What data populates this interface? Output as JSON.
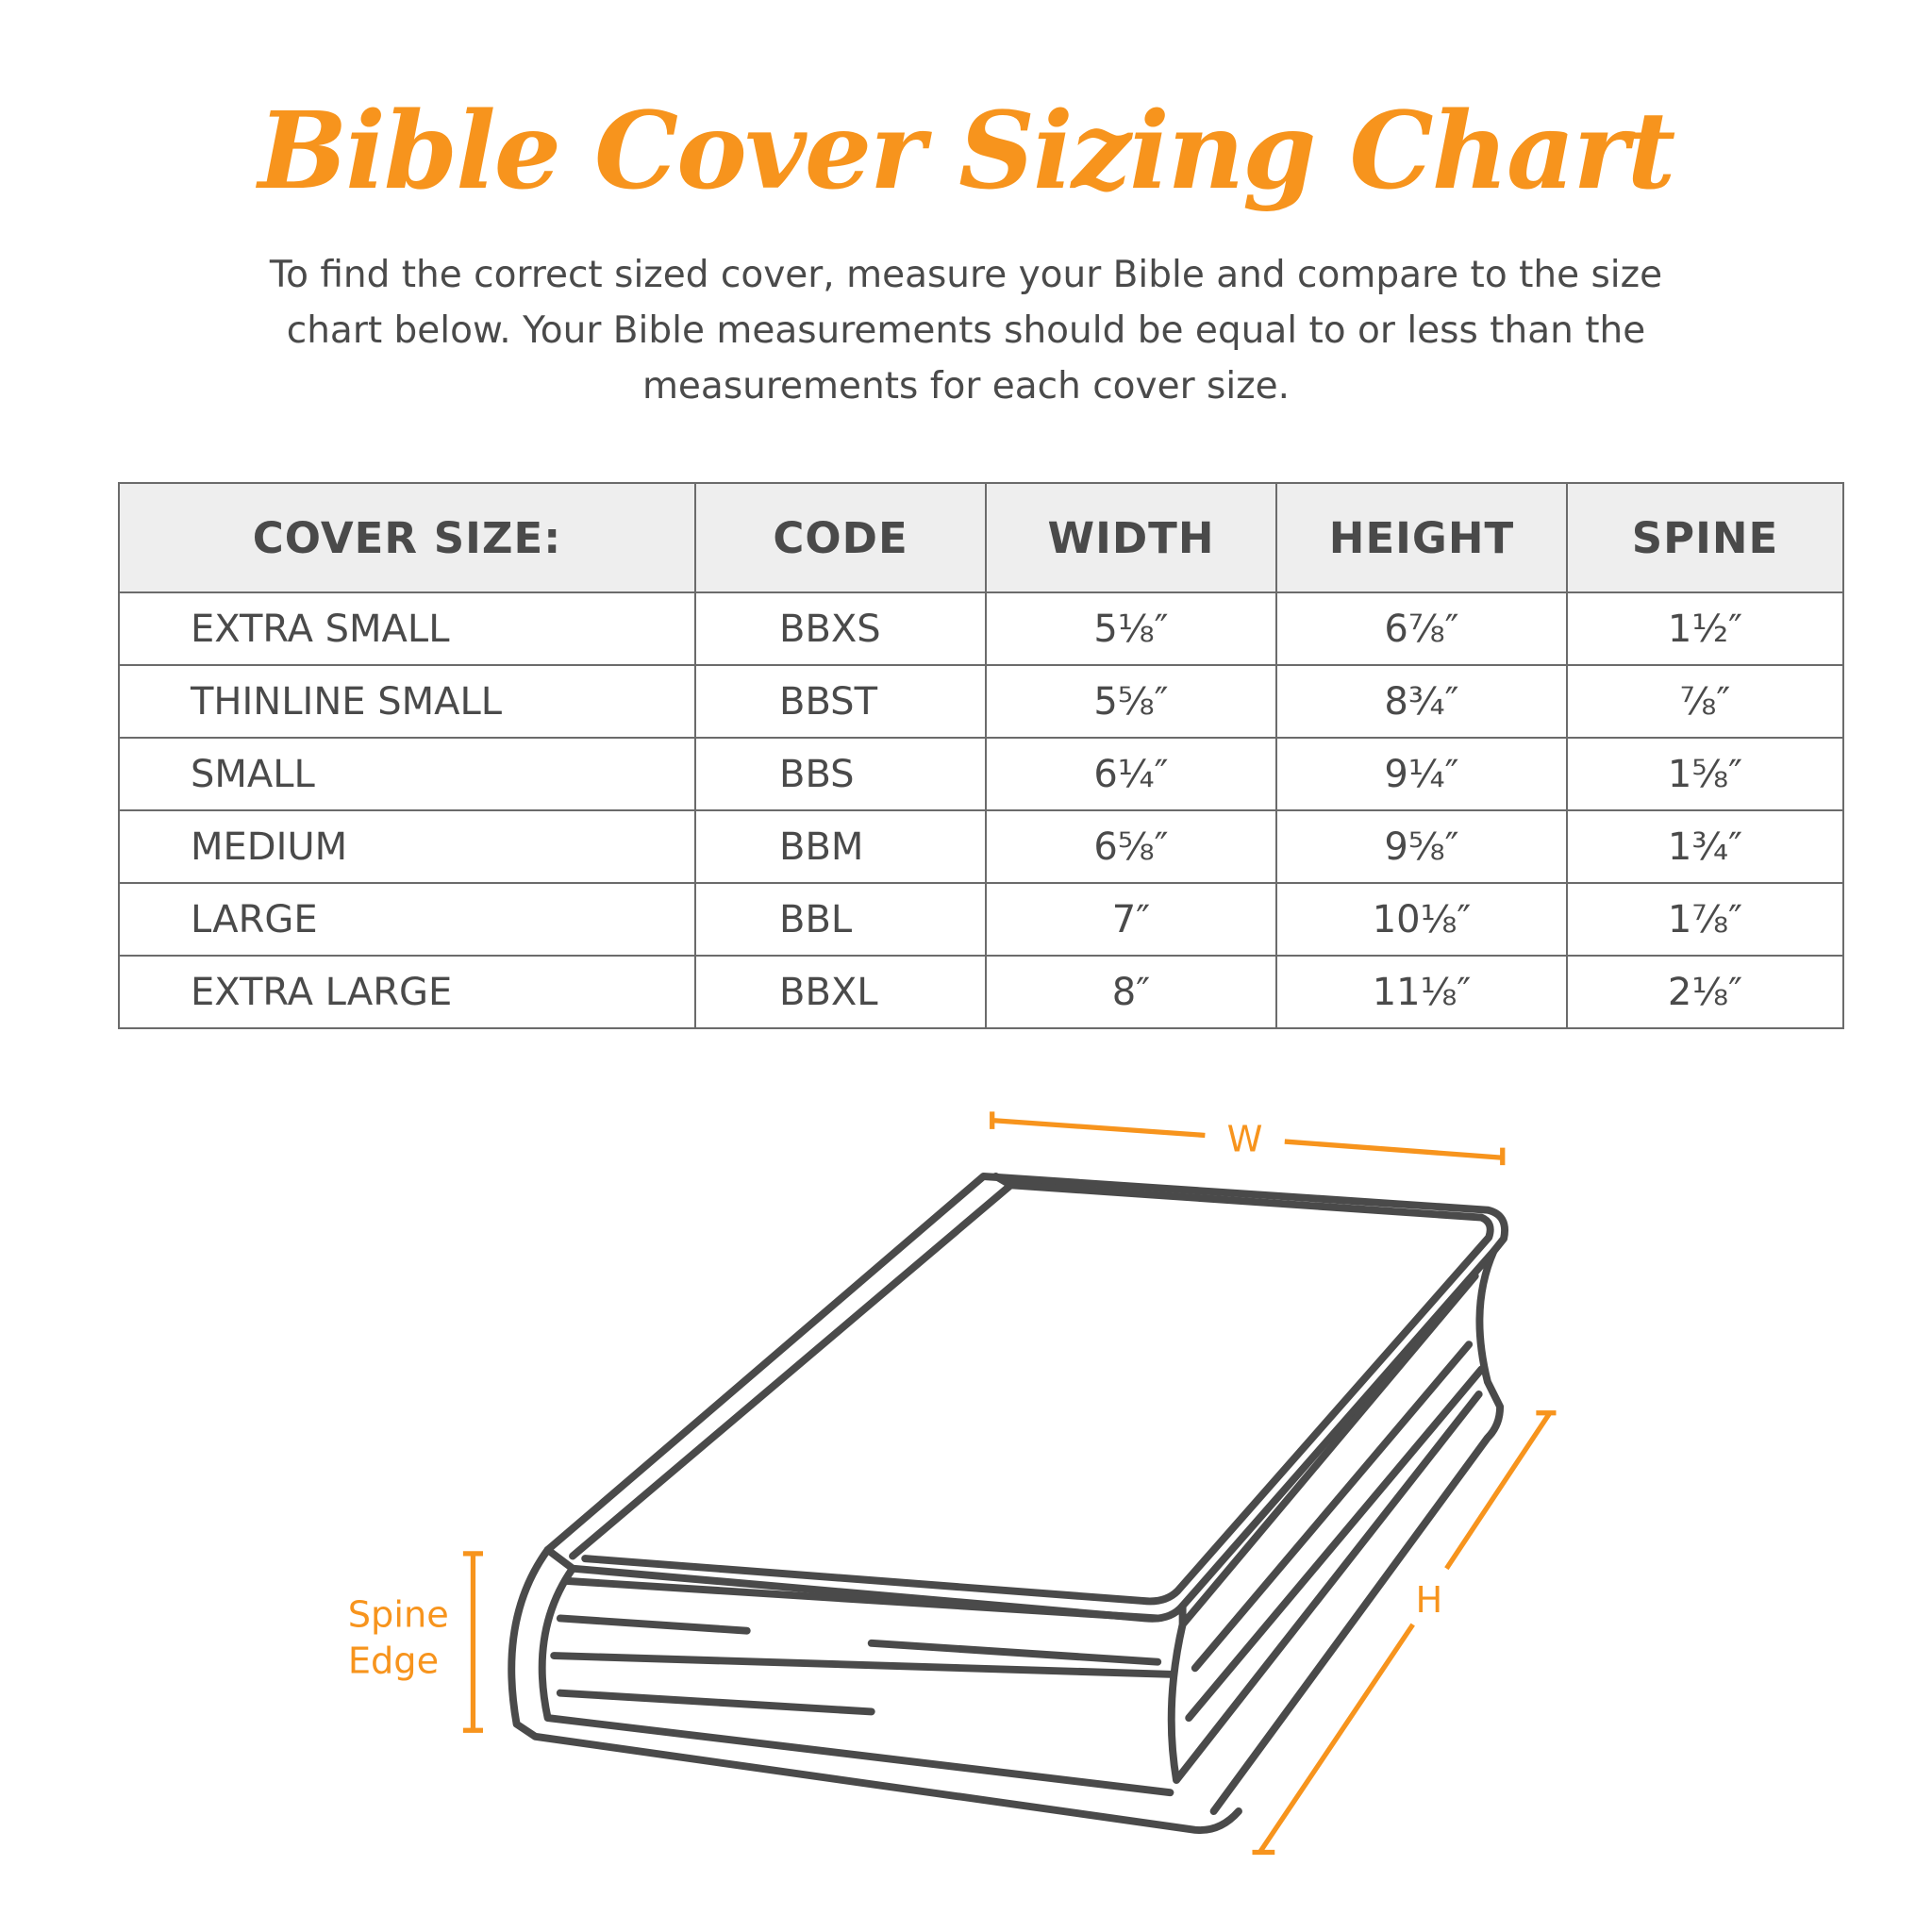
{
  "title": "Bible Cover Sizing Chart",
  "intro": "To find the correct sized cover, measure your Bible and compare to the size chart below. Your Bible measurements should be equal to or less than the measurements for each cover size.",
  "accent_color": "#f7941d",
  "table": {
    "headers": [
      "COVER SIZE:",
      "CODE",
      "WIDTH",
      "HEIGHT",
      "SPINE"
    ],
    "rows": [
      [
        "EXTRA SMALL",
        "BBXS",
        "5⅛″",
        "6⅞″",
        "1½″"
      ],
      [
        "THINLINE SMALL",
        "BBST",
        "5⅝″",
        "8¾″",
        "⅞″"
      ],
      [
        "SMALL",
        "BBS",
        "6¼″",
        "9¼″",
        "1⅝″"
      ],
      [
        "MEDIUM",
        "BBM",
        "6⅝″",
        "9⅝″",
        "1¾″"
      ],
      [
        "LARGE",
        "BBL",
        "7″",
        "10⅛″",
        "1⅞″"
      ],
      [
        "EXTRA LARGE",
        "BBXL",
        "8″",
        "11⅛″",
        "2⅛″"
      ]
    ]
  },
  "diagram": {
    "width_label": "W",
    "height_label": "H",
    "spine_label_line1": "Spine",
    "spine_label_line2": "Edge"
  }
}
